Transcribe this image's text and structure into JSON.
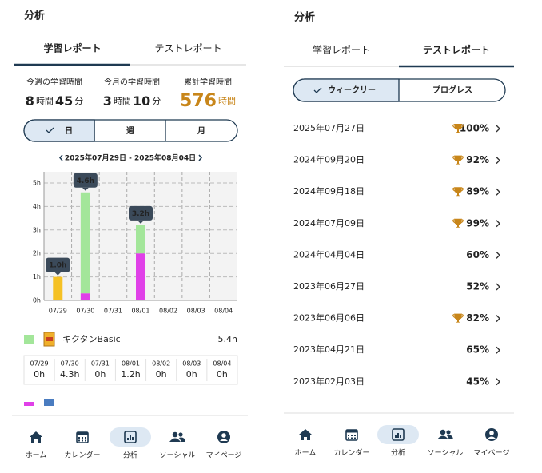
{
  "left": {
    "header": "分析",
    "tabs": [
      "学習レポート",
      "テストレポート"
    ],
    "stats": [
      {
        "label": "今週の学習時間",
        "value": [
          "8",
          "時間",
          "45",
          "分"
        ]
      },
      {
        "label": "今月の学習時間",
        "value": [
          "3",
          "時間",
          "10",
          "分"
        ]
      },
      {
        "label": "累計学習時間",
        "value": [
          "576",
          "時間"
        ]
      }
    ],
    "period_options": [
      "日",
      "週",
      "月"
    ],
    "date_range": "2025年07月29日 - 2025年08月04日",
    "legend": {
      "total": "5.4h",
      "days": [
        "07/29",
        "07/30",
        "07/31",
        "08/01",
        "08/02",
        "08/03",
        "08/04"
      ],
      "day_values": [
        "0h",
        "4.3h",
        "0h",
        "1.2h",
        "0h",
        "0h",
        "0h"
      ]
    },
    "nav": [
      "ホーム",
      "カレンダー",
      "分析",
      "ソーシャル",
      "マイページ"
    ]
  },
  "chart_data": {
    "type": "bar",
    "stacked": true,
    "categories": [
      "07/29",
      "07/30",
      "07/31",
      "08/01",
      "08/02",
      "08/03",
      "08/04"
    ],
    "series": [
      {
        "color": "#f5c124",
        "values": [
          1.0,
          0,
          0,
          0,
          0,
          0,
          0
        ]
      },
      {
        "color": "#e040e8",
        "values": [
          0,
          0.3,
          0,
          2.0,
          0,
          0,
          0
        ]
      },
      {
        "name": "キクタンBasic",
        "color": "#a3e69a",
        "values": [
          0,
          4.3,
          0,
          1.2,
          0,
          0,
          0
        ]
      }
    ],
    "total_labels": [
      "1.0h",
      "4.6h",
      null,
      "3.2h",
      null,
      null,
      null
    ],
    "ylim": [
      0,
      5
    ],
    "yticks": [
      {
        "value": 0,
        "label": "0h"
      },
      {
        "value": 1,
        "label": "1h"
      },
      {
        "value": 2,
        "label": "2h"
      },
      {
        "value": 3,
        "label": "3h"
      },
      {
        "value": 4,
        "label": "4h"
      },
      {
        "value": 5,
        "label": "5h"
      }
    ],
    "grid": true
  },
  "right": {
    "header": "分析",
    "tabs": [
      "学習レポート",
      "テストレポート"
    ],
    "toggle": [
      "ウィークリー",
      "プログレス"
    ],
    "records": [
      {
        "date": "2025年07月27日",
        "score": "100%",
        "trophy": true
      },
      {
        "date": "2024年09月20日",
        "score": "92%",
        "trophy": true
      },
      {
        "date": "2024年09月18日",
        "score": "89%",
        "trophy": true
      },
      {
        "date": "2024年07月09日",
        "score": "99%",
        "trophy": true
      },
      {
        "date": "2024年04月04日",
        "score": "60%",
        "trophy": false
      },
      {
        "date": "2023年06月27日",
        "score": "52%",
        "trophy": false
      },
      {
        "date": "2023年06月06日",
        "score": "82%",
        "trophy": true
      },
      {
        "date": "2023年04月21日",
        "score": "65%",
        "trophy": false
      },
      {
        "date": "2023年02月03日",
        "score": "45%",
        "trophy": false
      }
    ],
    "nav": [
      "ホーム",
      "カレンダー",
      "分析",
      "ソーシャル",
      "マイページ"
    ]
  }
}
